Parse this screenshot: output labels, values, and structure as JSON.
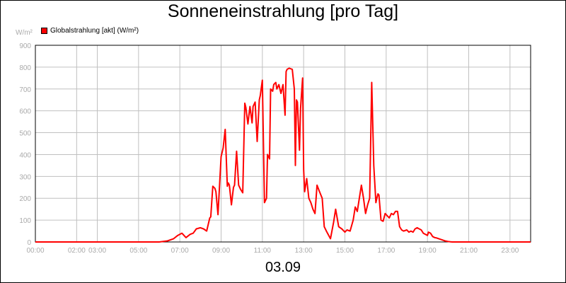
{
  "chart_data": {
    "type": "line",
    "title": "Sonneneinstrahlung [pro Tag]",
    "ylabel": "W/m²",
    "xlabel": "",
    "footer": "03.09",
    "ylim": [
      0,
      900
    ],
    "xlim": [
      0,
      24
    ],
    "y_ticks": [
      0,
      100,
      200,
      300,
      400,
      500,
      600,
      700,
      800,
      900
    ],
    "x_ticks": [
      {
        "x": 0,
        "label": "00:00"
      },
      {
        "x": 2,
        "label": "02:00"
      },
      {
        "x": 3,
        "label": "03:00"
      },
      {
        "x": 5,
        "label": "05:00"
      },
      {
        "x": 7,
        "label": "07:00"
      },
      {
        "x": 9,
        "label": "09:00"
      },
      {
        "x": 11,
        "label": "11:00"
      },
      {
        "x": 13,
        "label": "13:00"
      },
      {
        "x": 15,
        "label": "15:00"
      },
      {
        "x": 17,
        "label": "17:00"
      },
      {
        "x": 19,
        "label": "19:00"
      },
      {
        "x": 21,
        "label": "21:00"
      },
      {
        "x": 23,
        "label": "23:00"
      }
    ],
    "grid": true,
    "legend_position": "top-left",
    "colors": {
      "series": "#ff0000",
      "grid": "#c0c0c0",
      "axis": "#000000",
      "tick_text": "#aaaaaa"
    },
    "series": [
      {
        "name": "Globalstrahlung [akt] (W/m²)",
        "x": [
          0,
          6.0,
          6.4,
          6.7,
          6.9,
          7.1,
          7.3,
          7.5,
          7.65,
          7.8,
          8.0,
          8.15,
          8.3,
          8.45,
          8.5,
          8.6,
          8.7,
          8.75,
          8.85,
          9.0,
          9.1,
          9.2,
          9.3,
          9.35,
          9.4,
          9.5,
          9.6,
          9.65,
          9.75,
          9.85,
          9.95,
          10.05,
          10.15,
          10.2,
          10.3,
          10.4,
          10.5,
          10.55,
          10.65,
          10.75,
          10.85,
          10.9,
          11.0,
          11.1,
          11.2,
          11.25,
          11.35,
          11.4,
          11.5,
          11.55,
          11.65,
          11.7,
          11.8,
          11.9,
          12.0,
          12.1,
          12.15,
          12.2,
          12.3,
          12.45,
          12.55,
          12.6,
          12.65,
          12.7,
          12.8,
          12.85,
          12.95,
          13.0,
          13.05,
          13.15,
          13.25,
          13.35,
          13.45,
          13.55,
          13.65,
          13.75,
          13.9,
          14.0,
          14.1,
          14.3,
          14.45,
          14.55,
          14.7,
          14.85,
          15.0,
          15.1,
          15.25,
          15.4,
          15.5,
          15.6,
          15.7,
          15.8,
          15.9,
          16.0,
          16.1,
          16.2,
          16.3,
          16.4,
          16.5,
          16.55,
          16.6,
          16.65,
          16.75,
          16.85,
          16.95,
          17.05,
          17.15,
          17.25,
          17.35,
          17.45,
          17.55,
          17.65,
          17.75,
          17.85,
          18.0,
          18.1,
          18.2,
          18.3,
          18.4,
          18.5,
          18.6,
          18.7,
          18.8,
          18.9,
          19.0,
          19.05,
          19.15,
          19.25,
          19.35,
          19.45,
          19.55,
          19.7,
          19.85,
          20.0,
          20.2,
          20.5,
          24.0
        ],
        "values": [
          0,
          0,
          5,
          15,
          30,
          40,
          20,
          35,
          40,
          60,
          65,
          60,
          50,
          110,
          115,
          255,
          245,
          230,
          125,
          390,
          430,
          515,
          255,
          270,
          260,
          170,
          250,
          260,
          415,
          260,
          240,
          225,
          635,
          615,
          540,
          620,
          545,
          620,
          640,
          460,
          650,
          670,
          740,
          180,
          200,
          400,
          380,
          700,
          690,
          720,
          730,
          700,
          720,
          680,
          720,
          580,
          780,
          790,
          795,
          790,
          700,
          350,
          650,
          640,
          420,
          610,
          750,
          330,
          230,
          290,
          200,
          180,
          150,
          130,
          260,
          235,
          200,
          70,
          50,
          15,
          90,
          150,
          70,
          60,
          45,
          55,
          50,
          100,
          160,
          140,
          200,
          260,
          200,
          130,
          170,
          200,
          730,
          350,
          180,
          200,
          220,
          215,
          100,
          95,
          130,
          120,
          110,
          130,
          125,
          140,
          140,
          70,
          55,
          50,
          55,
          45,
          50,
          45,
          60,
          65,
          60,
          55,
          40,
          35,
          30,
          45,
          40,
          25,
          20,
          18,
          15,
          10,
          5,
          2,
          0,
          0,
          0
        ]
      }
    ]
  }
}
